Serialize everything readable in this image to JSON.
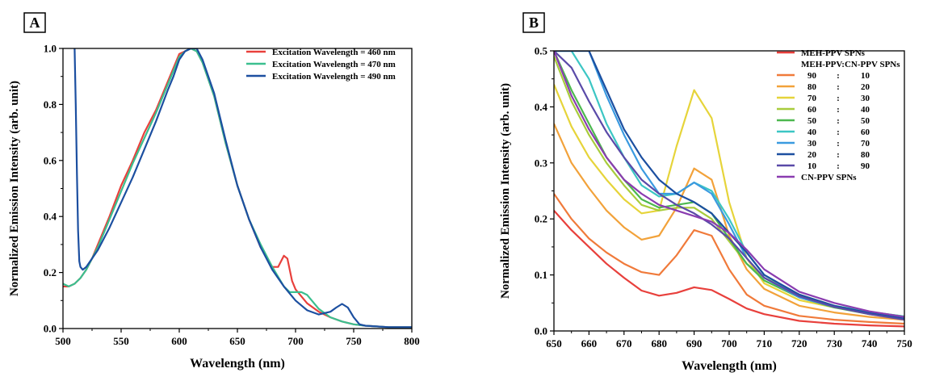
{
  "chart_data": [
    {
      "panel_label": "A",
      "type": "line",
      "xlabel": "Wavelength (nm)",
      "ylabel": "Normalized Emission Intensity (arb. unit)",
      "xlim": [
        500,
        800
      ],
      "ylim": [
        0,
        1.0
      ],
      "xticks": [
        "500",
        "550",
        "600",
        "650",
        "700",
        "750",
        "800"
      ],
      "yticks": [
        "0.0",
        "0.2",
        "0.4",
        "0.6",
        "0.8",
        "1.0"
      ],
      "legend_position": "top-right",
      "series": [
        {
          "name": "Excitation Wavelength = 460 nm",
          "color": "#e8403c",
          "x": [
            500,
            505,
            510,
            515,
            520,
            525,
            530,
            540,
            550,
            560,
            570,
            580,
            590,
            595,
            600,
            605,
            610,
            615,
            620,
            630,
            640,
            650,
            660,
            670,
            680,
            685,
            690,
            693,
            697,
            700,
            710,
            720,
            730,
            740,
            750,
            760,
            780,
            800
          ],
          "y": [
            0.15,
            0.15,
            0.16,
            0.18,
            0.21,
            0.25,
            0.3,
            0.4,
            0.51,
            0.6,
            0.7,
            0.78,
            0.88,
            0.93,
            0.98,
            0.99,
            1.0,
            0.99,
            0.95,
            0.83,
            0.66,
            0.51,
            0.39,
            0.29,
            0.22,
            0.22,
            0.26,
            0.25,
            0.17,
            0.14,
            0.09,
            0.06,
            0.04,
            0.025,
            0.015,
            0.01,
            0.005,
            0.005
          ]
        },
        {
          "name": "Excitation Wavelength = 470 nm",
          "color": "#3bbf8f",
          "x": [
            500,
            505,
            510,
            515,
            520,
            525,
            530,
            540,
            550,
            560,
            570,
            580,
            590,
            595,
            600,
            605,
            610,
            615,
            620,
            630,
            640,
            650,
            660,
            670,
            680,
            690,
            695,
            700,
            705,
            710,
            720,
            730,
            740,
            750,
            760,
            780,
            800
          ],
          "y": [
            0.16,
            0.15,
            0.16,
            0.18,
            0.21,
            0.25,
            0.29,
            0.39,
            0.49,
            0.59,
            0.68,
            0.77,
            0.87,
            0.92,
            0.97,
            0.99,
            1.0,
            0.99,
            0.95,
            0.83,
            0.66,
            0.51,
            0.39,
            0.3,
            0.22,
            0.15,
            0.13,
            0.13,
            0.13,
            0.12,
            0.07,
            0.04,
            0.025,
            0.015,
            0.01,
            0.005,
            0.005
          ]
        },
        {
          "name": "Excitation Wavelength = 490 nm",
          "color": "#1c4fa0",
          "x": [
            510,
            511,
            512,
            513,
            514,
            515,
            517,
            520,
            525,
            530,
            540,
            550,
            560,
            570,
            580,
            590,
            595,
            600,
            605,
            610,
            615,
            620,
            630,
            640,
            650,
            660,
            670,
            680,
            690,
            700,
            710,
            720,
            730,
            735,
            740,
            745,
            750,
            755,
            760,
            780,
            800
          ],
          "y": [
            1.0,
            0.8,
            0.55,
            0.35,
            0.24,
            0.22,
            0.21,
            0.22,
            0.25,
            0.28,
            0.36,
            0.45,
            0.54,
            0.64,
            0.74,
            0.85,
            0.9,
            0.96,
            0.99,
            1.0,
            1.0,
            0.96,
            0.84,
            0.67,
            0.51,
            0.39,
            0.29,
            0.21,
            0.15,
            0.1,
            0.065,
            0.05,
            0.06,
            0.075,
            0.088,
            0.075,
            0.04,
            0.015,
            0.01,
            0.005,
            0.005
          ]
        }
      ]
    },
    {
      "panel_label": "B",
      "type": "line",
      "xlabel": "Wavelength (nm)",
      "ylabel": "Normalized Emission Intensity (arb. unit)",
      "xlim": [
        650,
        750
      ],
      "ylim": [
        0,
        0.5
      ],
      "xticks": [
        "650",
        "660",
        "670",
        "680",
        "690",
        "700",
        "710",
        "720",
        "730",
        "740",
        "750"
      ],
      "yticks": [
        "0.0",
        "0.1",
        "0.2",
        "0.3",
        "0.4",
        "0.5"
      ],
      "legend_position": "top-right",
      "legend_header": "MEH-PPV:CN-PPV SPNs",
      "x": [
        650,
        655,
        660,
        665,
        670,
        675,
        680,
        685,
        690,
        695,
        700,
        705,
        710,
        720,
        730,
        740,
        750
      ],
      "series": [
        {
          "name": "MEH-PPV SPNs",
          "color": "#e8403c",
          "values": [
            0.215,
            0.18,
            0.15,
            0.12,
            0.095,
            0.072,
            0.063,
            0.068,
            0.078,
            0.073,
            0.057,
            0.04,
            0.03,
            0.018,
            0.013,
            0.01,
            0.008
          ]
        },
        {
          "name": "90 : 10",
          "color": "#f07a3a",
          "values": [
            0.245,
            0.2,
            0.165,
            0.14,
            0.12,
            0.105,
            0.1,
            0.135,
            0.18,
            0.17,
            0.11,
            0.065,
            0.045,
            0.027,
            0.02,
            0.016,
            0.013
          ]
        },
        {
          "name": "80 : 20",
          "color": "#f2a23a",
          "values": [
            0.37,
            0.3,
            0.255,
            0.215,
            0.185,
            0.163,
            0.17,
            0.22,
            0.29,
            0.27,
            0.17,
            0.11,
            0.075,
            0.045,
            0.033,
            0.025,
            0.02
          ]
        },
        {
          "name": "70 : 30",
          "color": "#e6d43a",
          "values": [
            0.44,
            0.365,
            0.31,
            0.27,
            0.235,
            0.21,
            0.215,
            0.33,
            0.43,
            0.38,
            0.23,
            0.13,
            0.085,
            0.055,
            0.042,
            0.033,
            0.026
          ]
        },
        {
          "name": "60 : 40",
          "color": "#a8cc3c",
          "values": [
            0.49,
            0.41,
            0.35,
            0.3,
            0.26,
            0.225,
            0.215,
            0.22,
            0.22,
            0.2,
            0.16,
            0.12,
            0.095,
            0.065,
            0.045,
            0.034,
            0.026
          ]
        },
        {
          "name": "50 : 50",
          "color": "#4cb84f",
          "values": [
            0.5,
            0.43,
            0.37,
            0.31,
            0.27,
            0.235,
            0.22,
            0.225,
            0.23,
            0.21,
            0.165,
            0.12,
            0.09,
            0.06,
            0.042,
            0.03,
            0.022
          ]
        },
        {
          "name": "40 : 60",
          "color": "#3cc6c4",
          "values": [
            0.5,
            0.5,
            0.45,
            0.37,
            0.31,
            0.26,
            0.24,
            0.245,
            0.265,
            0.25,
            0.2,
            0.14,
            0.1,
            0.063,
            0.045,
            0.034,
            0.026
          ]
        },
        {
          "name": "30 : 70",
          "color": "#3a9ae0",
          "values": [
            0.5,
            0.5,
            0.5,
            0.42,
            0.35,
            0.29,
            0.245,
            0.245,
            0.265,
            0.245,
            0.19,
            0.13,
            0.095,
            0.06,
            0.043,
            0.032,
            0.024
          ]
        },
        {
          "name": "20 : 80",
          "color": "#1c4fa0",
          "values": [
            0.5,
            0.5,
            0.5,
            0.43,
            0.36,
            0.31,
            0.27,
            0.245,
            0.23,
            0.21,
            0.175,
            0.14,
            0.1,
            0.065,
            0.045,
            0.032,
            0.022
          ]
        },
        {
          "name": "10 : 90",
          "color": "#5a4aa8",
          "values": [
            0.5,
            0.47,
            0.41,
            0.355,
            0.31,
            0.27,
            0.245,
            0.225,
            0.21,
            0.19,
            0.165,
            0.13,
            0.095,
            0.062,
            0.043,
            0.03,
            0.02
          ]
        },
        {
          "name": "CN-PPV SPNs",
          "color": "#8a3cb0",
          "values": [
            0.5,
            0.42,
            0.36,
            0.31,
            0.27,
            0.245,
            0.225,
            0.215,
            0.205,
            0.195,
            0.175,
            0.145,
            0.11,
            0.07,
            0.05,
            0.035,
            0.025
          ]
        }
      ]
    }
  ]
}
